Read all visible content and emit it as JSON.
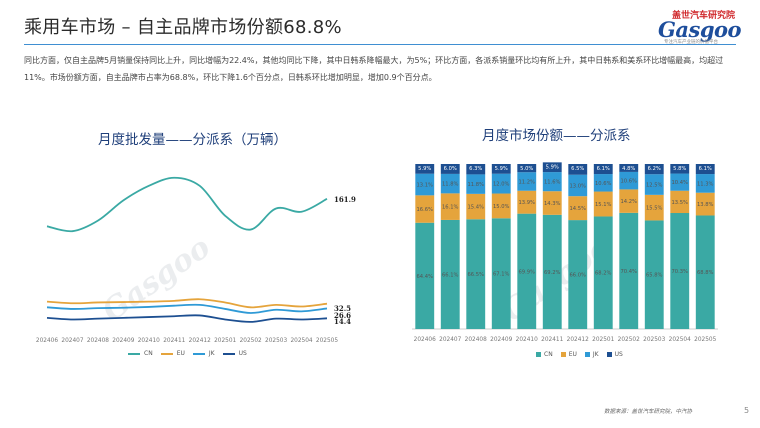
{
  "page": {
    "title": "乘用车市场 – 自主品牌市场份额68.8%",
    "summary": "同比方面，仅自主品牌5月销量保持同比上升，同比增幅为22.4%，其他均同比下降，其中日韩系降幅最大，为5%；环比方面，各派系销量环比均有所上升，其中日韩系和美系环比增幅最高，均超过11%。市场份额方面，自主品牌市占率为68.8%，环比下降1.6个百分点，日韩系环比增加明显，增加0.9个百分点。",
    "source": "数据来源：盖世汽车研究院，中汽协",
    "page_number": "5"
  },
  "logo": {
    "cn": "盖世汽车研究院",
    "en": "Gasgoo",
    "sub": "专注汽车产业链的价值平台"
  },
  "watermark": "Gasgoo",
  "colors": {
    "CN": "#3aa9a4",
    "EU": "#e5a43c",
    "JK": "#2f9ad6",
    "US": "#1d4f91",
    "accent": "#3f8fd2"
  },
  "chart_data": [
    {
      "type": "line",
      "title": "月度批发量——分派系（万辆）",
      "x": [
        "202406",
        "202407",
        "202408",
        "202409",
        "202410",
        "202411",
        "202412",
        "202501",
        "202502",
        "202503",
        "202504",
        "202505"
      ],
      "series": [
        {
          "name": "CN",
          "values": [
            128,
            122,
            135,
            160,
            178,
            188,
            178,
            141,
            124,
            150,
            146,
            161.9
          ]
        },
        {
          "name": "EU",
          "values": [
            35,
            33,
            34,
            34.5,
            35,
            36,
            38,
            34,
            28,
            31,
            29,
            32.5
          ]
        },
        {
          "name": "JK",
          "values": [
            28,
            26,
            27,
            27.5,
            28.5,
            30,
            31,
            26,
            21,
            25,
            23,
            26.6
          ]
        },
        {
          "name": "US",
          "values": [
            15,
            13,
            14,
            15,
            16,
            17,
            18,
            13,
            10,
            14,
            13,
            14.4
          ]
        }
      ],
      "end_labels": [
        "161.9",
        "32.5",
        "26.6",
        "14.4"
      ],
      "grid": false,
      "legend": "bottom"
    },
    {
      "type": "bar",
      "stacked": true,
      "title": "月度市场份额——分派系",
      "categories": [
        "202406",
        "202407",
        "202408",
        "202409",
        "202410",
        "202411",
        "202412",
        "202501",
        "202502",
        "202503",
        "202504",
        "202505"
      ],
      "series": [
        {
          "name": "CN",
          "values": [
            64.4,
            66.1,
            66.5,
            67.1,
            69.9,
            69.2,
            66.0,
            68.2,
            70.4,
            65.8,
            70.3,
            68.8
          ],
          "labels": [
            "64.4%",
            "66.1%",
            "66.5%",
            "67.1%",
            "69.9%",
            "69.2%",
            "66.0%",
            "68.2%",
            "70.4%",
            "65.8%",
            "70.3%",
            "68.8%"
          ]
        },
        {
          "name": "EU",
          "values": [
            16.6,
            16.1,
            15.4,
            15.0,
            13.9,
            14.3,
            14.5,
            15.1,
            14.2,
            15.5,
            13.5,
            13.8
          ],
          "labels": [
            "16.6%",
            "16.1%",
            "15.4%",
            "15.0%",
            "13.9%",
            "14.3%",
            "14.5%",
            "15.1%",
            "14.2%",
            "15.5%",
            "13.5%",
            "13.8%"
          ]
        },
        {
          "name": "JK",
          "values": [
            13.1,
            11.8,
            11.8,
            12.0,
            11.2,
            11.6,
            13.0,
            10.6,
            10.6,
            12.5,
            10.4,
            11.3
          ],
          "labels": [
            "13.1%",
            "11.8%",
            "11.8%",
            "12.0%",
            "11.2%",
            "11.6%",
            "13.0%",
            "10.6%",
            "10.6%",
            "12.5%",
            "10.4%",
            "11.3%"
          ]
        },
        {
          "name": "US",
          "values": [
            5.9,
            6.0,
            6.3,
            5.9,
            5.0,
            5.9,
            6.5,
            6.1,
            4.8,
            6.2,
            5.8,
            6.1
          ],
          "labels": [
            "5.9%",
            "6.0%",
            "6.3%",
            "5.9%",
            "5.0%",
            "5.9%",
            "6.5%",
            "6.1%",
            "4.8%",
            "6.2%",
            "5.8%",
            "6.1%"
          ]
        }
      ],
      "ylim": [
        0,
        100
      ],
      "grid": false,
      "legend": "bottom"
    }
  ]
}
